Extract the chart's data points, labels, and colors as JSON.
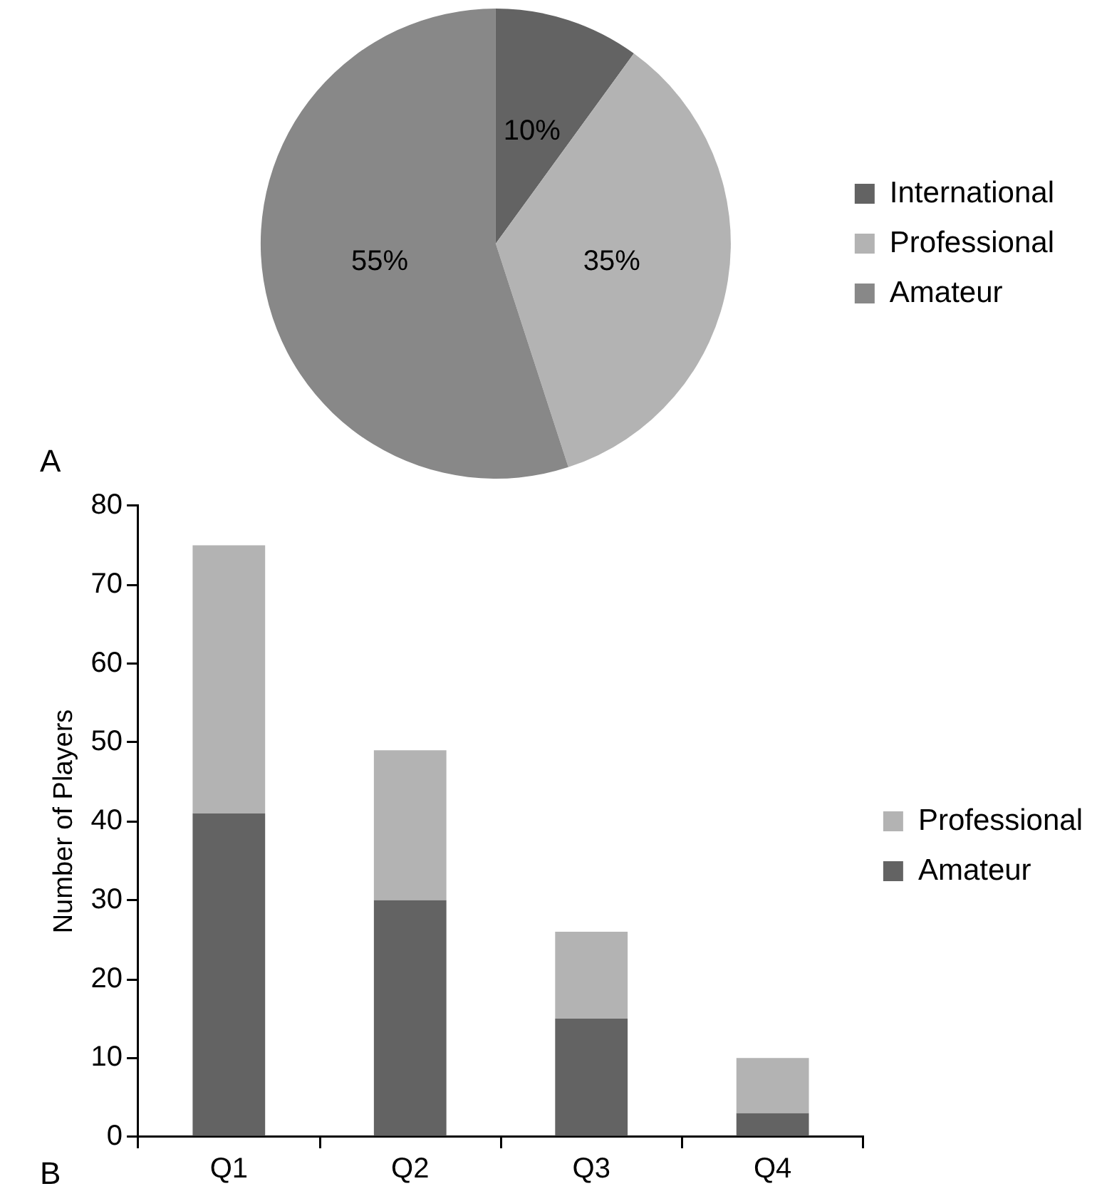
{
  "chart_data": [
    {
      "type": "pie",
      "categories": [
        "International",
        "Professional",
        "Amateur"
      ],
      "values": [
        10,
        35,
        55
      ],
      "colors": [
        "#636363",
        "#b3b3b3",
        "#888888"
      ],
      "value_labels": [
        "10%",
        "35%",
        "55%"
      ],
      "legend": "right",
      "annotations": [
        "A"
      ]
    },
    {
      "type": "bar",
      "stacked": true,
      "categories": [
        "Q1",
        "Q2",
        "Q3",
        "Q4"
      ],
      "ylabel": "Number of Players",
      "ylim": [
        0,
        80
      ],
      "yticks": [
        0,
        10,
        20,
        30,
        40,
        50,
        60,
        70,
        80
      ],
      "grid": false,
      "legend": "right",
      "series": [
        {
          "name": "Amateur",
          "color": "#636363",
          "values": [
            41,
            30,
            15,
            3
          ]
        },
        {
          "name": "Professional",
          "color": "#b3b3b3",
          "values": [
            34,
            19,
            11,
            7
          ]
        }
      ],
      "annotations": [
        "B"
      ]
    }
  ]
}
